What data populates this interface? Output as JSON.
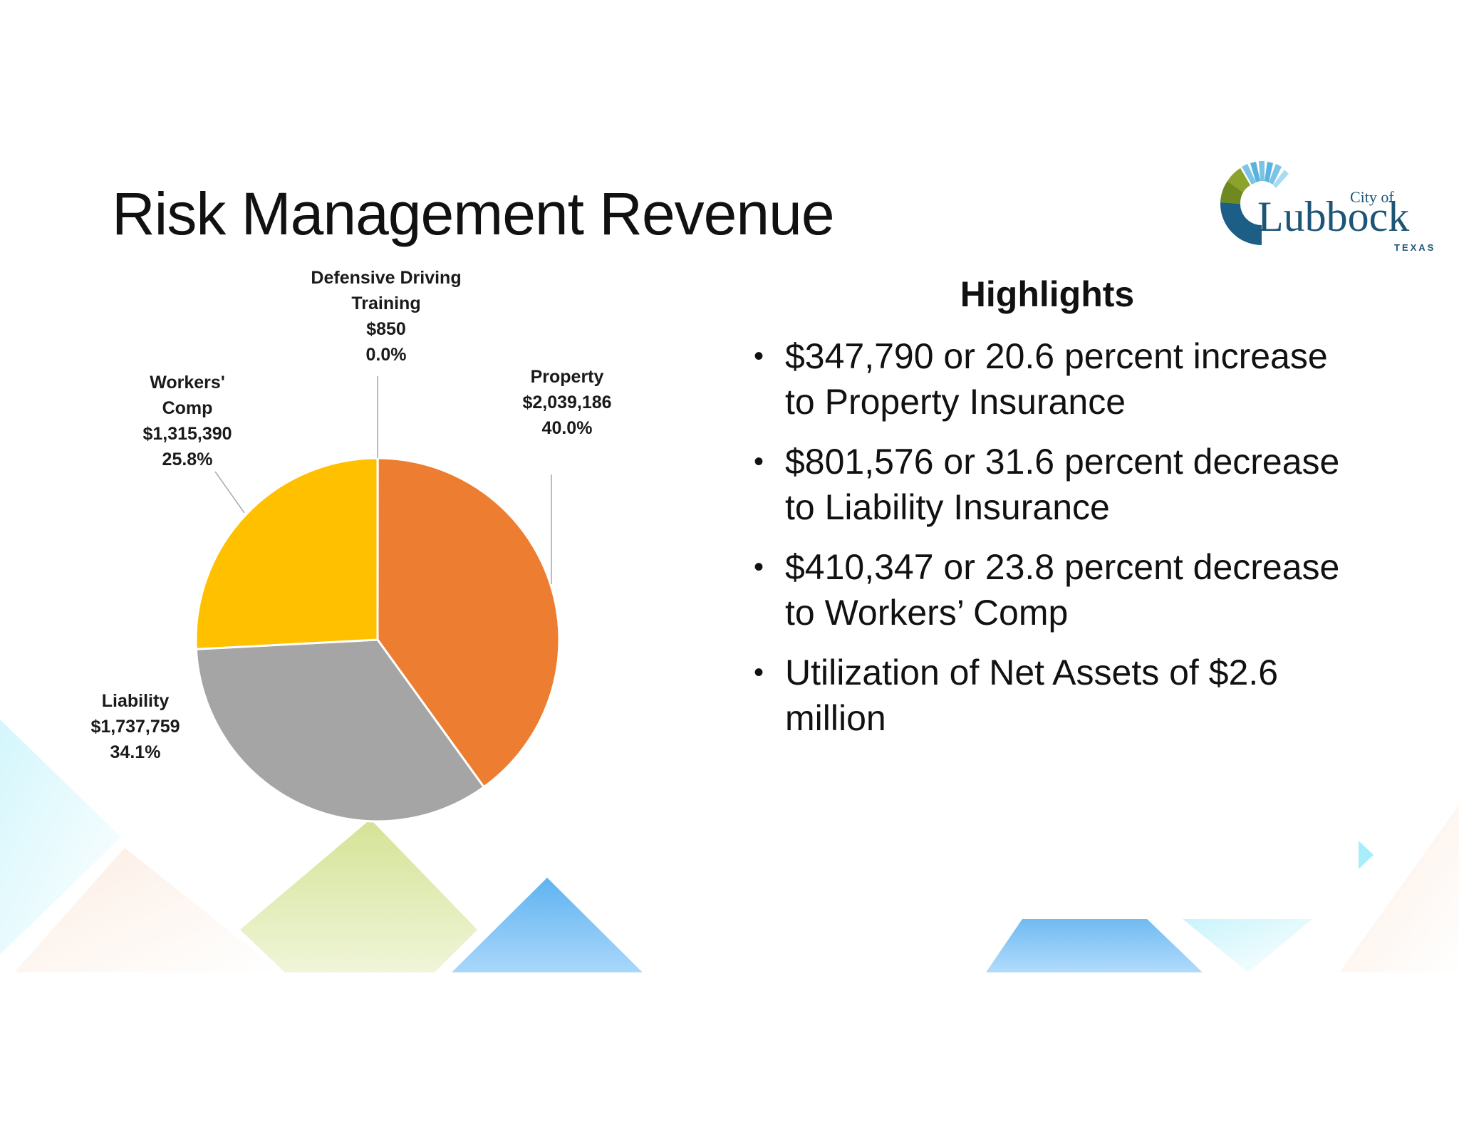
{
  "slide": {
    "title": "Risk Management Revenue"
  },
  "logo": {
    "small_text": "City of",
    "name": "Lubbock",
    "state": "TEXAS"
  },
  "highlights": {
    "heading": "Highlights",
    "items": [
      "$347,790 or 20.6 percent increase to Property Insurance",
      "$801,576 or 31.6 percent decrease to Liability Insurance",
      "$410,347 or 23.8 percent decrease to Workers’ Comp",
      "Utilization of Net Assets of $2.6 million"
    ]
  },
  "chart_data": {
    "type": "pie",
    "title": "",
    "slices": [
      {
        "label_lines": [
          "Defensive Driving",
          "Training"
        ],
        "value": 850,
        "value_label": "$850",
        "percent_label": "0.0%",
        "color": "#4472c4"
      },
      {
        "label_lines": [
          "Property"
        ],
        "value": 2039186,
        "value_label": "$2,039,186",
        "percent_label": "40.0%",
        "color": "#ed7d31"
      },
      {
        "label_lines": [
          "Liability"
        ],
        "value": 1737759,
        "value_label": "$1,737,759",
        "percent_label": "34.1%",
        "color": "#a5a5a5"
      },
      {
        "label_lines": [
          "Workers'",
          "Comp"
        ],
        "value": 1315390,
        "value_label": "$1,315,390",
        "percent_label": "25.8%",
        "color": "#ffc000"
      }
    ]
  }
}
